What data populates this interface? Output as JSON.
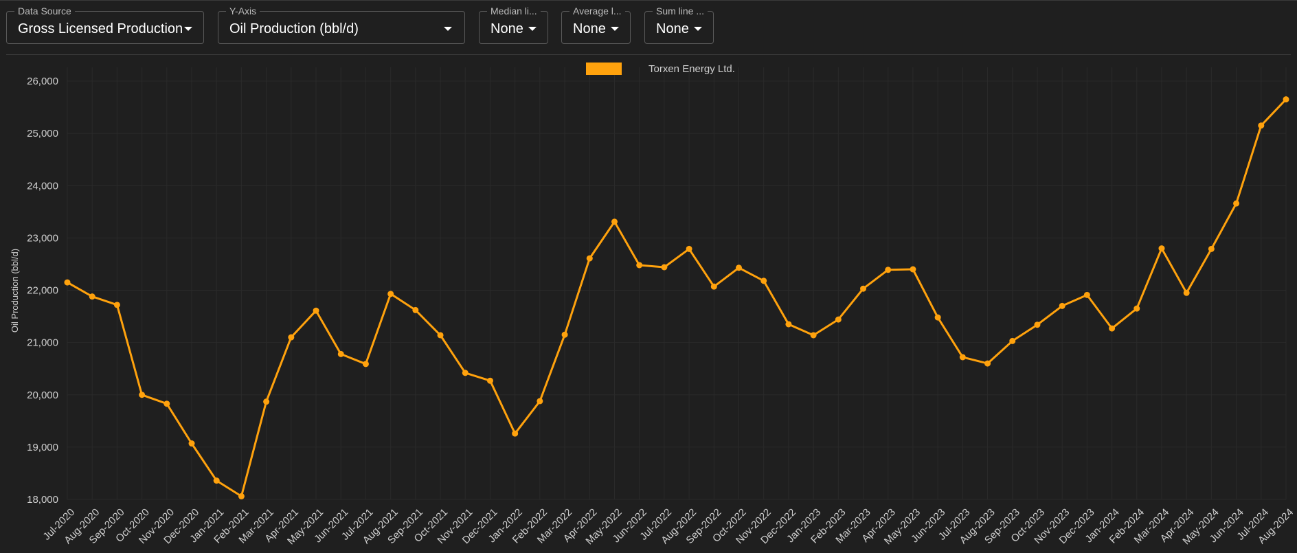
{
  "controls": {
    "data_source": {
      "label": "Data Source",
      "value": "Gross Licensed Production"
    },
    "y_axis": {
      "label": "Y-Axis",
      "value": "Oil Production (bbl/d)"
    },
    "median_line": {
      "label": "Median li...",
      "value": "None"
    },
    "average_line": {
      "label": "Average l...",
      "value": "None"
    },
    "sum_line": {
      "label": "Sum line ...",
      "value": "None"
    }
  },
  "colors": {
    "series": "#ffa20d",
    "background": "#1f1f1f",
    "grid": "#2a2a2a",
    "text": "#cfcfcf"
  },
  "chart_data": {
    "type": "line",
    "title": "",
    "xlabel": "",
    "ylabel": "Oil Production (bbl/d)",
    "ylim": [
      18000,
      26000
    ],
    "yticks": [
      18000,
      19000,
      20000,
      21000,
      22000,
      23000,
      24000,
      25000,
      26000
    ],
    "ytick_labels": [
      "18,000",
      "19,000",
      "20,000",
      "21,000",
      "22,000",
      "23,000",
      "24,000",
      "25,000",
      "26,000"
    ],
    "legend_position": "top-center",
    "grid": true,
    "categories": [
      "Jul-2020",
      "Aug-2020",
      "Sep-2020",
      "Oct-2020",
      "Nov-2020",
      "Dec-2020",
      "Jan-2021",
      "Feb-2021",
      "Mar-2021",
      "Apr-2021",
      "May-2021",
      "Jun-2021",
      "Jul-2021",
      "Aug-2021",
      "Sep-2021",
      "Oct-2021",
      "Nov-2021",
      "Dec-2021",
      "Jan-2022",
      "Feb-2022",
      "Mar-2022",
      "Apr-2022",
      "May-2022",
      "Jun-2022",
      "Jul-2022",
      "Aug-2022",
      "Sep-2022",
      "Oct-2022",
      "Nov-2022",
      "Dec-2022",
      "Jan-2023",
      "Feb-2023",
      "Mar-2023",
      "Apr-2023",
      "May-2023",
      "Jun-2023",
      "Jul-2023",
      "Aug-2023",
      "Sep-2023",
      "Oct-2023",
      "Nov-2023",
      "Dec-2023",
      "Jan-2024",
      "Feb-2024",
      "Mar-2024",
      "Apr-2024",
      "May-2024",
      "Jun-2024",
      "Jul-2024",
      "Aug-2024"
    ],
    "series": [
      {
        "name": "Torxen Energy Ltd.",
        "color": "#ffa20d",
        "values": [
          22150,
          21880,
          21720,
          20000,
          19830,
          19070,
          18360,
          18060,
          19870,
          21100,
          21610,
          20780,
          20590,
          21930,
          21620,
          21140,
          20420,
          20270,
          19260,
          19880,
          21150,
          22610,
          23310,
          22480,
          22440,
          22790,
          22070,
          22430,
          22180,
          21350,
          21140,
          21440,
          22030,
          22390,
          22400,
          21480,
          20720,
          20600,
          21030,
          21340,
          21700,
          21910,
          21270,
          21650,
          22800,
          21950,
          22790,
          23660,
          25150,
          25650
        ]
      }
    ]
  }
}
